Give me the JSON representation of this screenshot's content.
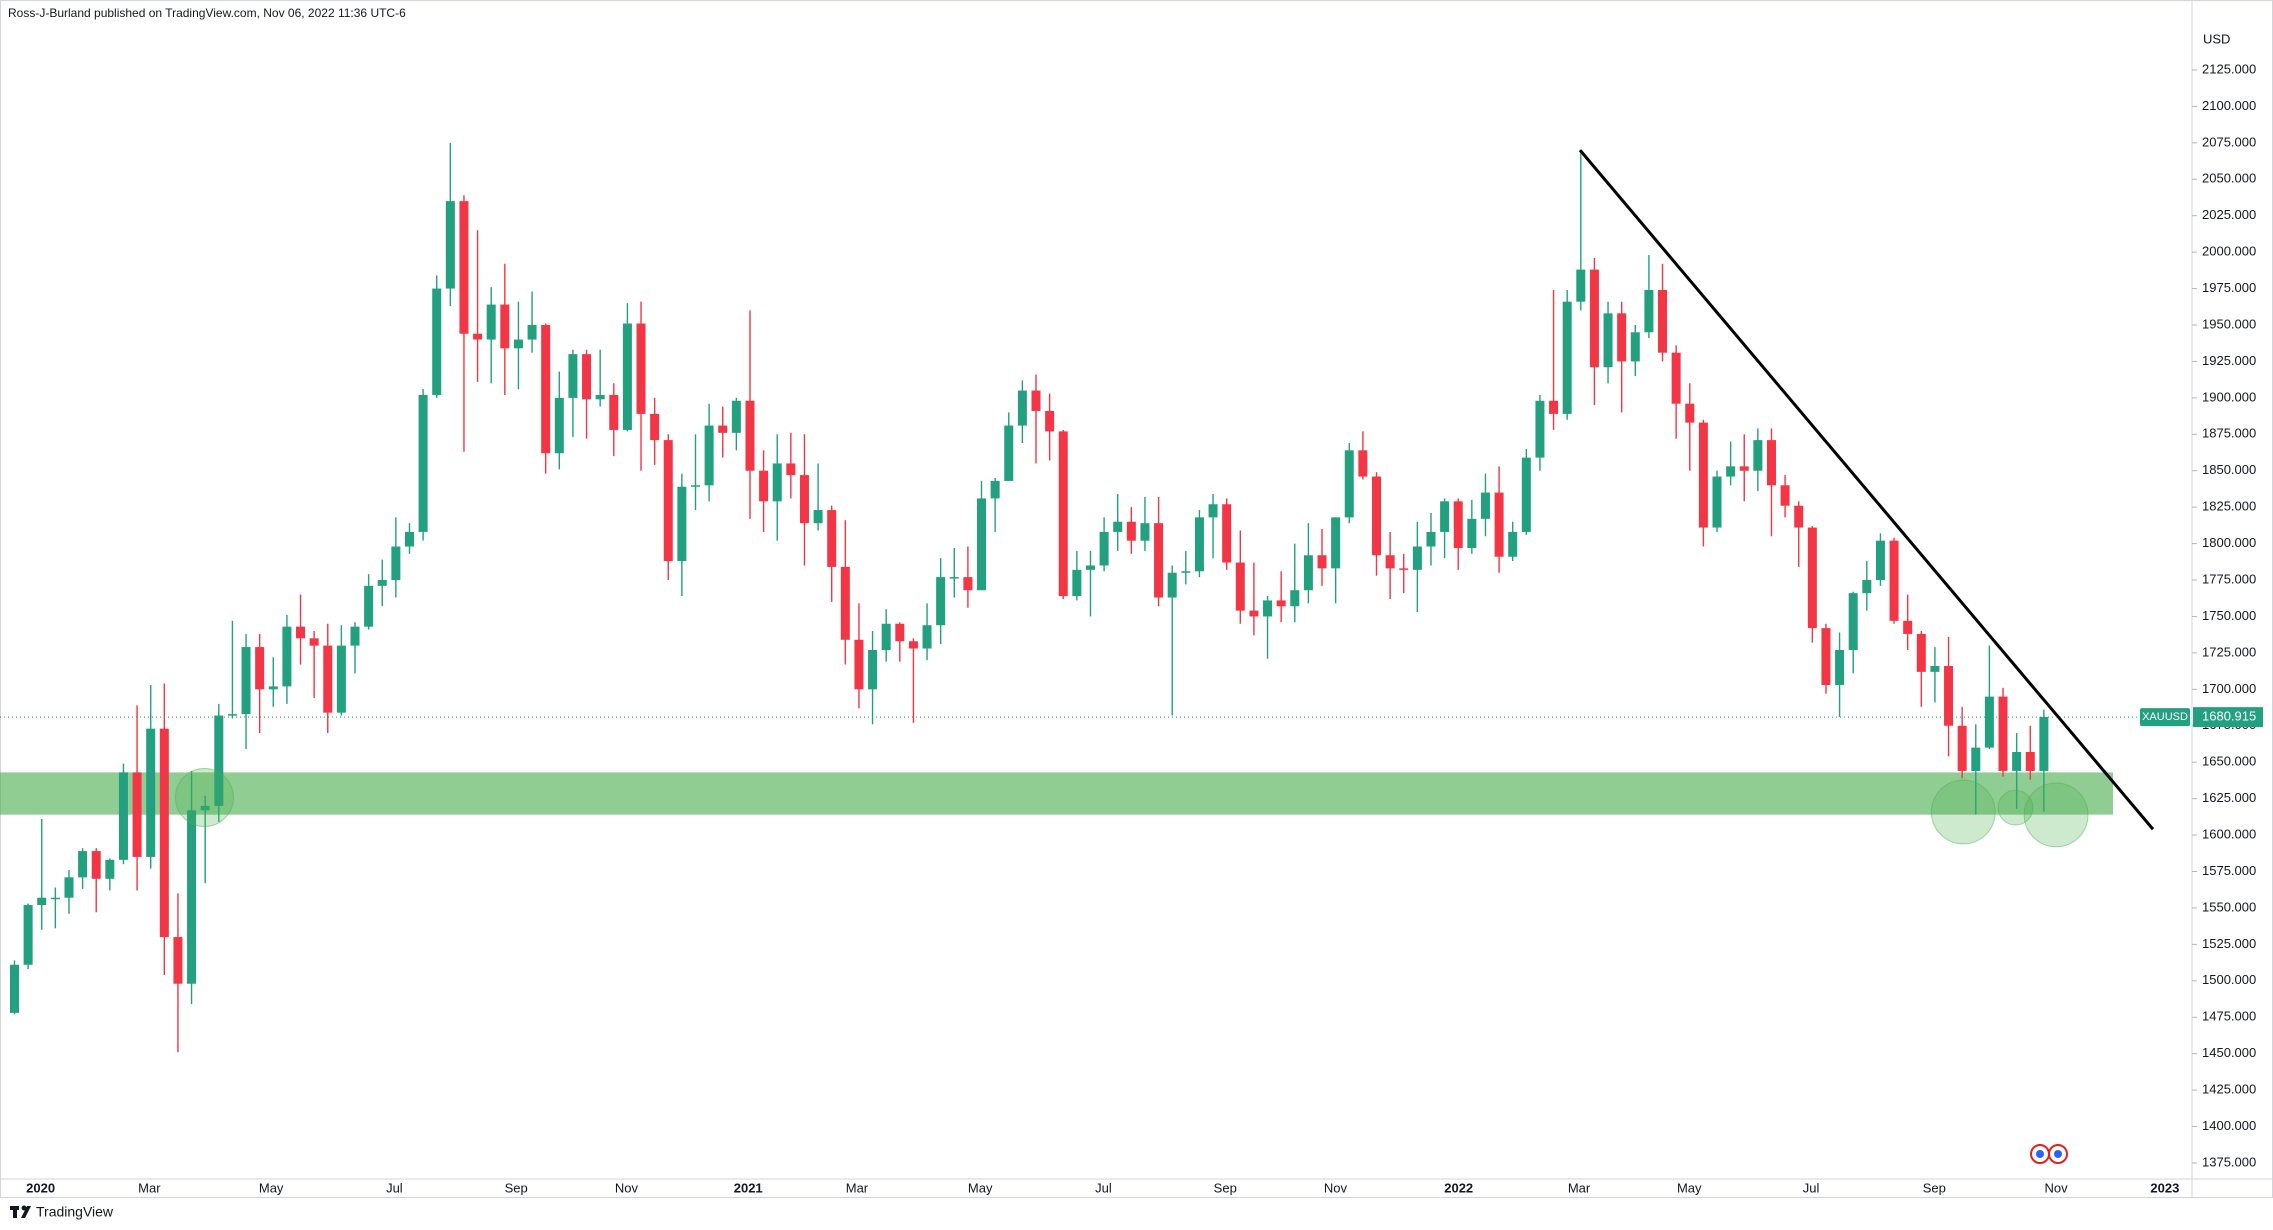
{
  "chart_data": {
    "type": "candlestick",
    "header": "Ross-J-Burland published on TradingView.com, Nov 06, 2022 11:36 UTC-6",
    "currency": "USD",
    "symbol": "XAUUSD",
    "last_price": 1680.915,
    "brand": "TradingView",
    "up_color": "#22a07f",
    "down_color": "#f23645",
    "x_axis_labels": [
      "2020",
      "Mar",
      "May",
      "Jul",
      "Sep",
      "Nov",
      "2021",
      "Mar",
      "May",
      "Jul",
      "Sep",
      "Nov",
      "2022",
      "Mar",
      "May",
      "Jul",
      "Sep",
      "Nov",
      "2023"
    ],
    "ylim": [
      1364,
      2173
    ],
    "yticks": [
      {
        "value": 2125,
        "label": "2125.000"
      },
      {
        "value": 2100,
        "label": "2100.000"
      },
      {
        "value": 2075,
        "label": "2075.000"
      },
      {
        "value": 2050,
        "label": "2050.000"
      },
      {
        "value": 2025,
        "label": "2025.000"
      },
      {
        "value": 2000,
        "label": "2000.000"
      },
      {
        "value": 1975,
        "label": "1975.000"
      },
      {
        "value": 1950,
        "label": "1950.000"
      },
      {
        "value": 1925,
        "label": "1925.000"
      },
      {
        "value": 1900,
        "label": "1900.000"
      },
      {
        "value": 1875,
        "label": "1875.000"
      },
      {
        "value": 1850,
        "label": "1850.000"
      },
      {
        "value": 1825,
        "label": "1825.000"
      },
      {
        "value": 1800,
        "label": "1800.000"
      },
      {
        "value": 1775,
        "label": "1775.000"
      },
      {
        "value": 1750,
        "label": "1750.000"
      },
      {
        "value": 1725,
        "label": "1725.000"
      },
      {
        "value": 1700,
        "label": "1700.000"
      },
      {
        "value": 1675,
        "label": "1675.000"
      },
      {
        "value": 1650,
        "label": "1650.000"
      },
      {
        "value": 1625,
        "label": "1625.000"
      },
      {
        "value": 1600,
        "label": "1600.000"
      },
      {
        "value": 1575,
        "label": "1575.000"
      },
      {
        "value": 1550,
        "label": "1550.000"
      },
      {
        "value": 1525,
        "label": "1525.000"
      },
      {
        "value": 1500,
        "label": "1500.000"
      },
      {
        "value": 1475,
        "label": "1475.000"
      },
      {
        "value": 1450,
        "label": "1450.000"
      },
      {
        "value": 1425,
        "label": "1425.000"
      },
      {
        "value": 1400,
        "label": "1400.000"
      },
      {
        "value": 1375,
        "label": "1375.000"
      }
    ],
    "support_zone": [
      1614,
      1643
    ],
    "trendline": [
      2070,
      1604
    ],
    "candles": [
      [
        1478,
        1514,
        1477,
        1511
      ],
      [
        1511,
        1553,
        1508,
        1552
      ],
      [
        1552,
        1611,
        1535,
        1557
      ],
      [
        1557,
        1564,
        1536,
        1557
      ],
      [
        1557,
        1576,
        1546,
        1571
      ],
      [
        1571,
        1591,
        1563,
        1589
      ],
      [
        1589,
        1591,
        1547,
        1570
      ],
      [
        1570,
        1584,
        1562,
        1583
      ],
      [
        1583,
        1649,
        1580,
        1643
      ],
      [
        1643,
        1689,
        1562,
        1585
      ],
      [
        1585,
        1703,
        1577,
        1673
      ],
      [
        1673,
        1704,
        1504,
        1530
      ],
      [
        1530,
        1560,
        1451,
        1498
      ],
      [
        1498,
        1644,
        1484,
        1617
      ],
      [
        1617,
        1627,
        1567,
        1620
      ],
      [
        1620,
        1690,
        1609,
        1682
      ],
      [
        1682,
        1747,
        1680,
        1683
      ],
      [
        1683,
        1738,
        1659,
        1729
      ],
      [
        1729,
        1738,
        1670,
        1700
      ],
      [
        1700,
        1722,
        1688,
        1702
      ],
      [
        1702,
        1751,
        1690,
        1743
      ],
      [
        1743,
        1765,
        1717,
        1735
      ],
      [
        1735,
        1740,
        1694,
        1730
      ],
      [
        1730,
        1745,
        1670,
        1684
      ],
      [
        1684,
        1744,
        1682,
        1730
      ],
      [
        1730,
        1746,
        1711,
        1743
      ],
      [
        1743,
        1779,
        1741,
        1771
      ],
      [
        1771,
        1789,
        1757,
        1775
      ],
      [
        1775,
        1818,
        1763,
        1798
      ],
      [
        1798,
        1814,
        1793,
        1808
      ],
      [
        1808,
        1906,
        1802,
        1902
      ],
      [
        1902,
        1984,
        1900,
        1975
      ],
      [
        1975,
        2075,
        1963,
        2035
      ],
      [
        2035,
        2039,
        1863,
        1944
      ],
      [
        1944,
        2015,
        1911,
        1940
      ],
      [
        1940,
        1976,
        1910,
        1964
      ],
      [
        1964,
        1992,
        1902,
        1934
      ],
      [
        1934,
        1966,
        1906,
        1940
      ],
      [
        1940,
        1973,
        1931,
        1950
      ],
      [
        1950,
        1951,
        1848,
        1862
      ],
      [
        1862,
        1918,
        1851,
        1900
      ],
      [
        1900,
        1933,
        1873,
        1930
      ],
      [
        1930,
        1933,
        1872,
        1899
      ],
      [
        1899,
        1933,
        1894,
        1902
      ],
      [
        1902,
        1910,
        1860,
        1878
      ],
      [
        1878,
        1965,
        1877,
        1951
      ],
      [
        1951,
        1966,
        1850,
        1889
      ],
      [
        1889,
        1900,
        1854,
        1871
      ],
      [
        1871,
        1875,
        1775,
        1788
      ],
      [
        1788,
        1848,
        1764,
        1839
      ],
      [
        1839,
        1875,
        1823,
        1840
      ],
      [
        1840,
        1896,
        1829,
        1881
      ],
      [
        1881,
        1894,
        1859,
        1876
      ],
      [
        1876,
        1900,
        1864,
        1898
      ],
      [
        1898,
        1960,
        1817,
        1850
      ],
      [
        1850,
        1864,
        1808,
        1829
      ],
      [
        1829,
        1875,
        1802,
        1855
      ],
      [
        1855,
        1876,
        1831,
        1847
      ],
      [
        1847,
        1875,
        1785,
        1814
      ],
      [
        1814,
        1855,
        1809,
        1823
      ],
      [
        1823,
        1826,
        1760,
        1784
      ],
      [
        1784,
        1816,
        1717,
        1734
      ],
      [
        1734,
        1759,
        1687,
        1700
      ],
      [
        1700,
        1740,
        1676,
        1727
      ],
      [
        1727,
        1755,
        1719,
        1745
      ],
      [
        1745,
        1746,
        1719,
        1733
      ],
      [
        1733,
        1735,
        1677,
        1728
      ],
      [
        1728,
        1759,
        1720,
        1744
      ],
      [
        1744,
        1790,
        1731,
        1777
      ],
      [
        1777,
        1797,
        1763,
        1777
      ],
      [
        1777,
        1798,
        1756,
        1768
      ],
      [
        1768,
        1843,
        1768,
        1831
      ],
      [
        1831,
        1845,
        1808,
        1843
      ],
      [
        1843,
        1890,
        1843,
        1881
      ],
      [
        1881,
        1912,
        1869,
        1905
      ],
      [
        1905,
        1916,
        1855,
        1891
      ],
      [
        1891,
        1903,
        1857,
        1877
      ],
      [
        1877,
        1878,
        1762,
        1764
      ],
      [
        1764,
        1795,
        1761,
        1782
      ],
      [
        1782,
        1795,
        1750,
        1785
      ],
      [
        1785,
        1818,
        1781,
        1808
      ],
      [
        1808,
        1834,
        1795,
        1815
      ],
      [
        1815,
        1825,
        1793,
        1802
      ],
      [
        1802,
        1832,
        1795,
        1814
      ],
      [
        1814,
        1832,
        1757,
        1763
      ],
      [
        1763,
        1785,
        1682,
        1780
      ],
      [
        1780,
        1795,
        1772,
        1781
      ],
      [
        1781,
        1823,
        1777,
        1818
      ],
      [
        1818,
        1834,
        1790,
        1827
      ],
      [
        1827,
        1831,
        1782,
        1787
      ],
      [
        1787,
        1809,
        1745,
        1754
      ],
      [
        1754,
        1787,
        1737,
        1750
      ],
      [
        1750,
        1764,
        1721,
        1761
      ],
      [
        1761,
        1781,
        1746,
        1757
      ],
      [
        1757,
        1800,
        1746,
        1768
      ],
      [
        1768,
        1814,
        1759,
        1792
      ],
      [
        1792,
        1810,
        1771,
        1783
      ],
      [
        1783,
        1818,
        1759,
        1818
      ],
      [
        1818,
        1869,
        1814,
        1864
      ],
      [
        1864,
        1877,
        1844,
        1846
      ],
      [
        1846,
        1849,
        1778,
        1792
      ],
      [
        1792,
        1808,
        1762,
        1783
      ],
      [
        1783,
        1793,
        1766,
        1782
      ],
      [
        1782,
        1815,
        1753,
        1798
      ],
      [
        1798,
        1821,
        1785,
        1808
      ],
      [
        1808,
        1831,
        1790,
        1829
      ],
      [
        1829,
        1831,
        1782,
        1797
      ],
      [
        1797,
        1830,
        1793,
        1817
      ],
      [
        1817,
        1848,
        1805,
        1835
      ],
      [
        1835,
        1853,
        1780,
        1791
      ],
      [
        1791,
        1815,
        1788,
        1808
      ],
      [
        1808,
        1865,
        1806,
        1859
      ],
      [
        1859,
        1902,
        1850,
        1898
      ],
      [
        1898,
        1974,
        1878,
        1889
      ],
      [
        1889,
        1974,
        1885,
        1966
      ],
      [
        1966,
        2070,
        1960,
        1988
      ],
      [
        1988,
        1996,
        1895,
        1921
      ],
      [
        1921,
        1966,
        1910,
        1958
      ],
      [
        1958,
        1966,
        1890,
        1925
      ],
      [
        1925,
        1950,
        1915,
        1945
      ],
      [
        1945,
        1998,
        1941,
        1974
      ],
      [
        1974,
        1992,
        1925,
        1931
      ],
      [
        1931,
        1936,
        1872,
        1896
      ],
      [
        1896,
        1910,
        1850,
        1883
      ],
      [
        1883,
        1885,
        1798,
        1811
      ],
      [
        1811,
        1850,
        1808,
        1846
      ],
      [
        1846,
        1870,
        1840,
        1853
      ],
      [
        1853,
        1875,
        1829,
        1850
      ],
      [
        1850,
        1879,
        1836,
        1871
      ],
      [
        1871,
        1879,
        1805,
        1840
      ],
      [
        1840,
        1847,
        1818,
        1826
      ],
      [
        1826,
        1829,
        1784,
        1811
      ],
      [
        1811,
        1812,
        1732,
        1742
      ],
      [
        1742,
        1745,
        1697,
        1703
      ],
      [
        1703,
        1739,
        1681,
        1727
      ],
      [
        1727,
        1767,
        1711,
        1766
      ],
      [
        1766,
        1788,
        1754,
        1775
      ],
      [
        1775,
        1807,
        1771,
        1802
      ],
      [
        1802,
        1804,
        1745,
        1747
      ],
      [
        1747,
        1765,
        1727,
        1738
      ],
      [
        1738,
        1740,
        1688,
        1712
      ],
      [
        1712,
        1729,
        1691,
        1716
      ],
      [
        1716,
        1736,
        1654,
        1675
      ],
      [
        1675,
        1688,
        1639,
        1644
      ],
      [
        1644,
        1676,
        1614,
        1660
      ],
      [
        1660,
        1730,
        1659,
        1695
      ],
      [
        1695,
        1701,
        1640,
        1644
      ],
      [
        1644,
        1670,
        1618,
        1657
      ],
      [
        1657,
        1675,
        1638,
        1644
      ],
      [
        1644,
        1686,
        1616,
        1681
      ]
    ]
  }
}
